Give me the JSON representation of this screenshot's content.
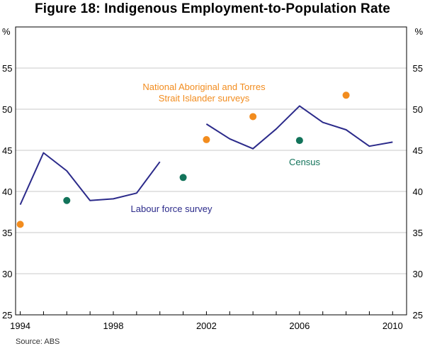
{
  "title": "Figure 18: Indigenous Employment-to-Population Rate",
  "source": "Source:  ABS",
  "colors": {
    "lfs": "#2b2a8a",
    "survey": "#f28c1e",
    "census": "#12735a",
    "grid": "#c8c8c8",
    "axis": "#000000"
  },
  "chart_data": {
    "type": "line",
    "title": "Figure 18: Indigenous Employment-to-Population Rate",
    "xlabel": "",
    "ylabel": "%",
    "y_unit_left": "%",
    "y_unit_right": "%",
    "xlim": [
      1993.8,
      2010.6
    ],
    "ylim": [
      25,
      60
    ],
    "yticks": [
      25,
      30,
      35,
      40,
      45,
      50,
      55
    ],
    "xticks": [
      1994,
      1998,
      2002,
      2006,
      2010
    ],
    "grid": true,
    "series": [
      {
        "name": "Labour force survey",
        "kind": "line",
        "color": "#2b2a8a",
        "segments": [
          [
            [
              1994.0,
              38.4
            ],
            [
              1995.0,
              44.7
            ],
            [
              1996.0,
              42.5
            ],
            [
              1997.0,
              38.9
            ],
            [
              1998.0,
              39.1
            ],
            [
              1999.0,
              39.8
            ],
            [
              2000.0,
              43.6
            ]
          ],
          [
            [
              2002.0,
              48.2
            ],
            [
              2003.0,
              46.4
            ],
            [
              2004.0,
              45.2
            ],
            [
              2005.0,
              47.6
            ],
            [
              2006.0,
              50.4
            ],
            [
              2007.0,
              48.4
            ],
            [
              2008.0,
              47.5
            ],
            [
              2009.0,
              45.5
            ],
            [
              2010.0,
              46.0
            ]
          ]
        ]
      },
      {
        "name": "National Aboriginal and Torres Strait Islander surveys",
        "kind": "scatter",
        "color": "#f28c1e",
        "points": [
          [
            1994.0,
            36.0
          ],
          [
            2002.0,
            46.3
          ],
          [
            2004.0,
            49.1
          ],
          [
            2008.0,
            51.7
          ]
        ]
      },
      {
        "name": "Census",
        "kind": "scatter",
        "color": "#12735a",
        "points": [
          [
            1996.0,
            38.9
          ],
          [
            2001.0,
            41.7
          ],
          [
            2006.0,
            46.2
          ]
        ]
      }
    ],
    "annotations": {
      "lfs_label": "Labour force survey",
      "survey_label_line1": "National Aboriginal and Torres",
      "survey_label_line2": "Strait Islander surveys",
      "census_label": "Census"
    }
  }
}
